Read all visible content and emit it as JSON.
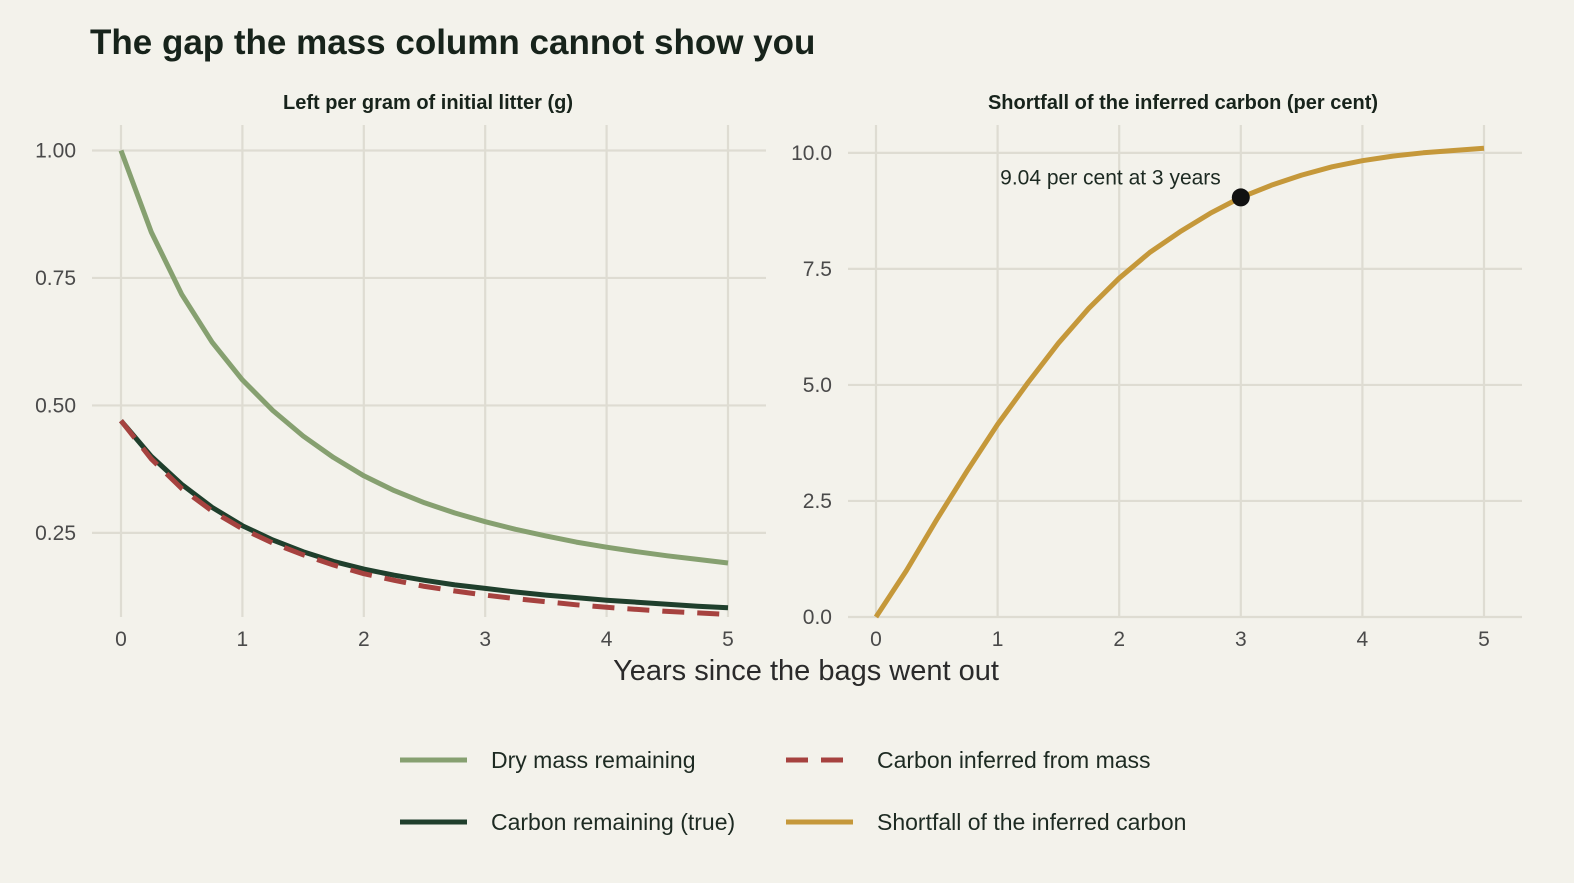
{
  "title": "The gap the mass column cannot show you",
  "xlabel": "Years since the bags went out",
  "colors": {
    "background": "#f3f2eb",
    "grid": "#dedcd2",
    "dry_mass": "#86a070",
    "carbon_true": "#1f3f2c",
    "carbon_inferred": "#a6423f",
    "shortfall": "#c5983a",
    "marker": "#111111"
  },
  "legend": [
    {
      "label": "Dry mass remaining",
      "color": "#86a070",
      "dash": "solid"
    },
    {
      "label": "Carbon inferred from mass",
      "color": "#a6423f",
      "dash": "dashed"
    },
    {
      "label": "Carbon remaining (true)",
      "color": "#1f3f2c",
      "dash": "solid"
    },
    {
      "label": "Shortfall of the inferred carbon",
      "color": "#c5983a",
      "dash": "solid"
    }
  ],
  "chart_data": [
    {
      "type": "line",
      "title": "Left per gram of initial litter (g)",
      "xlim": [
        0,
        5
      ],
      "ylim": [
        0.085,
        1.05
      ],
      "xticks": [
        0,
        1,
        2,
        3,
        4,
        5
      ],
      "yticks": [
        0.25,
        0.5,
        0.75,
        1.0
      ],
      "ytick_labels": [
        "0.25",
        "0.50",
        "0.75",
        "1.00"
      ],
      "x": [
        0,
        0.25,
        0.5,
        0.75,
        1,
        1.25,
        1.5,
        1.75,
        2,
        2.25,
        2.5,
        2.75,
        3,
        3.25,
        3.5,
        3.75,
        4,
        4.25,
        4.5,
        4.75,
        5
      ],
      "series": [
        {
          "name": "Dry mass remaining",
          "color": "#86a070",
          "dash": "solid",
          "values": [
            1.0,
            0.84,
            0.718,
            0.624,
            0.55,
            0.49,
            0.44,
            0.398,
            0.362,
            0.333,
            0.309,
            0.289,
            0.272,
            0.257,
            0.244,
            0.232,
            0.222,
            0.213,
            0.205,
            0.198,
            0.191
          ]
        },
        {
          "name": "Carbon remaining (true)",
          "color": "#1f3f2c",
          "dash": "solid",
          "values": [
            0.47,
            0.4,
            0.345,
            0.3,
            0.264,
            0.236,
            0.213,
            0.194,
            0.179,
            0.167,
            0.157,
            0.148,
            0.141,
            0.134,
            0.128,
            0.123,
            0.118,
            0.114,
            0.11,
            0.106,
            0.103
          ]
        },
        {
          "name": "Carbon inferred from mass",
          "color": "#a6423f",
          "dash": "dashed",
          "values": [
            0.47,
            0.395,
            0.337,
            0.293,
            0.258,
            0.23,
            0.207,
            0.187,
            0.17,
            0.157,
            0.145,
            0.136,
            0.128,
            0.121,
            0.115,
            0.109,
            0.104,
            0.1,
            0.096,
            0.093,
            0.09
          ]
        }
      ]
    },
    {
      "type": "line",
      "title": "Shortfall of the inferred carbon (per cent)",
      "xlim": [
        0,
        5
      ],
      "ylim": [
        0,
        10.6
      ],
      "xticks": [
        0,
        1,
        2,
        3,
        4,
        5
      ],
      "yticks": [
        0,
        2.5,
        5,
        7.5,
        10
      ],
      "ytick_labels": [
        "0.0",
        "2.5",
        "5.0",
        "7.5",
        "10.0"
      ],
      "x": [
        0,
        0.25,
        0.5,
        0.75,
        1,
        1.25,
        1.5,
        1.75,
        2,
        2.25,
        2.5,
        2.75,
        3,
        3.25,
        3.5,
        3.75,
        4,
        4.25,
        4.5,
        4.75,
        5
      ],
      "series": [
        {
          "name": "Shortfall of the inferred carbon",
          "color": "#c5983a",
          "dash": "solid",
          "values": [
            0,
            1.0,
            2.1,
            3.15,
            4.15,
            5.05,
            5.9,
            6.65,
            7.3,
            7.85,
            8.3,
            8.7,
            9.04,
            9.3,
            9.52,
            9.7,
            9.83,
            9.93,
            10.0,
            10.05,
            10.1
          ]
        }
      ],
      "annotations": [
        {
          "x": 3,
          "y": 9.04,
          "text": "9.04 per cent at 3 years"
        }
      ]
    }
  ]
}
